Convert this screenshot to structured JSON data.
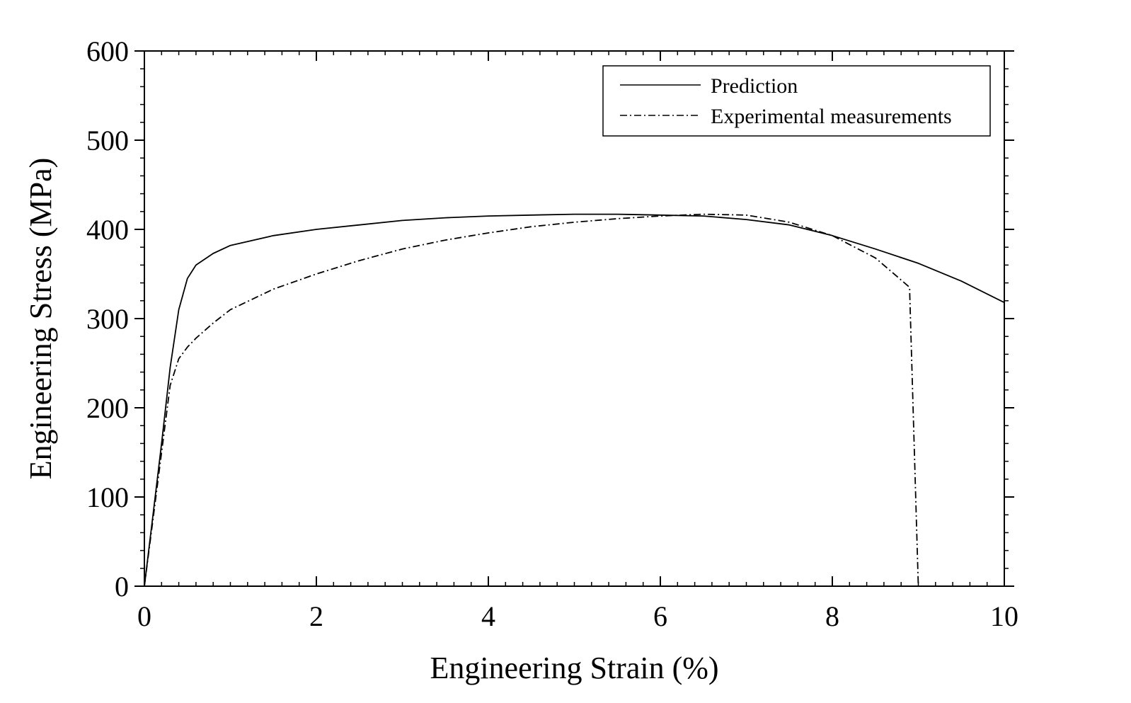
{
  "chart_data": {
    "type": "line",
    "xlabel": "Engineering Strain (%)",
    "ylabel": "Engineering Stress (MPa)",
    "xlim": [
      0,
      10
    ],
    "ylim": [
      0,
      600
    ],
    "x_ticks": [
      "0",
      "2",
      "4",
      "6",
      "8",
      "10"
    ],
    "y_ticks": [
      "0",
      "100",
      "200",
      "300",
      "400",
      "500",
      "600"
    ],
    "grid": false,
    "legend_position": "top-right",
    "series": [
      {
        "name": "Prediction",
        "line_style": "solid",
        "color": "#000000",
        "x": [
          0,
          0.1,
          0.2,
          0.3,
          0.4,
          0.5,
          0.6,
          0.8,
          1.0,
          1.5,
          2.0,
          2.5,
          3.0,
          3.5,
          4.0,
          4.5,
          5.0,
          5.5,
          6.0,
          6.5,
          7.0,
          7.5,
          8.0,
          8.5,
          9.0,
          9.5,
          10.0
        ],
        "y": [
          0,
          80,
          160,
          245,
          310,
          345,
          360,
          373,
          382,
          393,
          400,
          405,
          410,
          413,
          415,
          416,
          417,
          417,
          416,
          415,
          411,
          405,
          393,
          378,
          362,
          342,
          318
        ]
      },
      {
        "name": "Experimental measurements",
        "line_style": "dash-dot",
        "color": "#000000",
        "x": [
          0,
          0.1,
          0.2,
          0.3,
          0.4,
          0.5,
          0.6,
          0.8,
          1.0,
          1.5,
          2.0,
          2.5,
          3.0,
          3.5,
          4.0,
          4.5,
          5.0,
          5.5,
          6.0,
          6.5,
          7.0,
          7.5,
          8.0,
          8.5,
          8.9,
          8.9,
          9.0
        ],
        "y": [
          0,
          75,
          150,
          225,
          255,
          268,
          278,
          295,
          310,
          333,
          350,
          365,
          378,
          388,
          396,
          403,
          408,
          412,
          415,
          417,
          416,
          408,
          393,
          368,
          335,
          330,
          0
        ]
      }
    ]
  }
}
